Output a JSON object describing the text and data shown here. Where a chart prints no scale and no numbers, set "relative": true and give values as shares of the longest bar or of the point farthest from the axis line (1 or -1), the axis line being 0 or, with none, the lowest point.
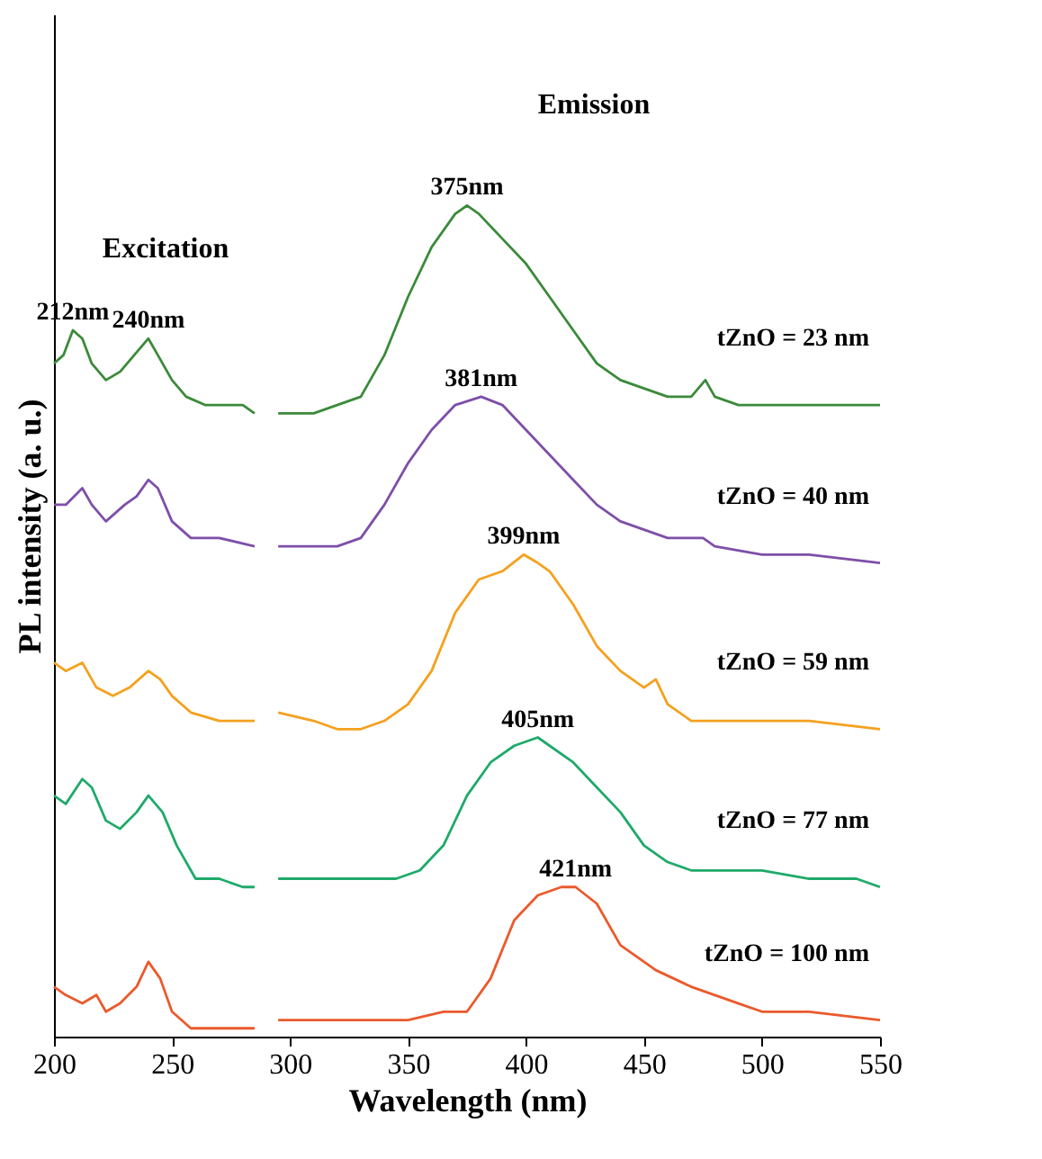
{
  "chart_data": {
    "type": "line",
    "relative": true,
    "xlabel": "Wavelength (nm)",
    "ylabel": "PL intensity (a. u.)",
    "xlim": [
      200,
      550
    ],
    "xticks": [
      200,
      250,
      300,
      350,
      400,
      450,
      500,
      550
    ],
    "legend": false,
    "grid": false,
    "line_style": "solid",
    "marker": "none",
    "tick_labels": "x",
    "annotations": [
      "Excitation",
      "Emission",
      {
        "text": "212nm",
        "x": 208,
        "y": 0.85
      },
      {
        "text": "240nm",
        "x": 240,
        "y": 0.84
      },
      {
        "text": "375nm",
        "x": 375,
        "y": 1.0
      },
      {
        "text": "381nm",
        "x": 381,
        "y": 0.77
      },
      {
        "text": "399nm",
        "x": 399,
        "y": 0.58
      },
      {
        "text": "405nm",
        "x": 405,
        "y": 0.36
      },
      {
        "text": "421nm",
        "x": 421,
        "y": 0.18
      }
    ],
    "series": [
      {
        "name": "tZnO = 23 nm",
        "color": "#3b8a3a",
        "x": [
          200,
          204,
          208,
          212,
          216,
          222,
          228,
          234,
          240,
          244,
          250,
          256,
          264,
          280,
          285,
          null,
          295,
          310,
          320,
          330,
          340,
          350,
          360,
          370,
          375,
          380,
          390,
          400,
          410,
          420,
          430,
          440,
          450,
          460,
          470,
          476,
          480,
          490,
          500,
          520,
          550
        ],
        "values": [
          0.81,
          0.82,
          0.85,
          0.84,
          0.81,
          0.79,
          0.8,
          0.82,
          0.84,
          0.82,
          0.79,
          0.77,
          0.76,
          0.76,
          0.75,
          null,
          0.75,
          0.75,
          0.76,
          0.77,
          0.82,
          0.89,
          0.95,
          0.99,
          1.0,
          0.99,
          0.96,
          0.93,
          0.89,
          0.85,
          0.81,
          0.79,
          0.78,
          0.77,
          0.77,
          0.79,
          0.77,
          0.76,
          0.76,
          0.76,
          0.76
        ]
      },
      {
        "name": "tZnO = 40 nm",
        "color": "#7e4fa8",
        "x": [
          200,
          205,
          212,
          216,
          222,
          230,
          235,
          240,
          244,
          250,
          258,
          270,
          285,
          null,
          295,
          310,
          320,
          330,
          340,
          350,
          360,
          370,
          381,
          390,
          400,
          410,
          420,
          430,
          440,
          450,
          460,
          475,
          480,
          500,
          520,
          550
        ],
        "values": [
          0.64,
          0.64,
          0.66,
          0.64,
          0.62,
          0.64,
          0.65,
          0.67,
          0.66,
          0.62,
          0.6,
          0.6,
          0.59,
          null,
          0.59,
          0.59,
          0.59,
          0.6,
          0.64,
          0.69,
          0.73,
          0.76,
          0.77,
          0.76,
          0.73,
          0.7,
          0.67,
          0.64,
          0.62,
          0.61,
          0.6,
          0.6,
          0.59,
          0.58,
          0.58,
          0.57
        ]
      },
      {
        "name": "tZnO = 59 nm",
        "color": "#f4a11f",
        "x": [
          200,
          205,
          212,
          218,
          225,
          232,
          240,
          245,
          250,
          258,
          270,
          285,
          null,
          295,
          310,
          320,
          330,
          340,
          350,
          360,
          370,
          380,
          390,
          399,
          405,
          410,
          420,
          430,
          440,
          450,
          455,
          460,
          470,
          480,
          500,
          520,
          550
        ],
        "values": [
          0.45,
          0.44,
          0.45,
          0.42,
          0.41,
          0.42,
          0.44,
          0.43,
          0.41,
          0.39,
          0.38,
          0.38,
          null,
          0.39,
          0.38,
          0.37,
          0.37,
          0.38,
          0.4,
          0.44,
          0.51,
          0.55,
          0.56,
          0.58,
          0.57,
          0.56,
          0.52,
          0.47,
          0.44,
          0.42,
          0.43,
          0.4,
          0.38,
          0.38,
          0.38,
          0.38,
          0.37
        ]
      },
      {
        "name": "tZnO = 77 nm",
        "color": "#1faa6a",
        "x": [
          200,
          205,
          212,
          216,
          222,
          228,
          235,
          240,
          246,
          252,
          260,
          270,
          280,
          285,
          null,
          295,
          310,
          330,
          345,
          355,
          365,
          375,
          385,
          395,
          405,
          410,
          420,
          430,
          440,
          450,
          460,
          470,
          480,
          490,
          500,
          520,
          530,
          540,
          550
        ],
        "values": [
          0.29,
          0.28,
          0.31,
          0.3,
          0.26,
          0.25,
          0.27,
          0.29,
          0.27,
          0.23,
          0.19,
          0.19,
          0.18,
          0.18,
          null,
          0.19,
          0.19,
          0.19,
          0.19,
          0.2,
          0.23,
          0.29,
          0.33,
          0.35,
          0.36,
          0.35,
          0.33,
          0.3,
          0.27,
          0.23,
          0.21,
          0.2,
          0.2,
          0.2,
          0.2,
          0.19,
          0.19,
          0.19,
          0.18
        ]
      },
      {
        "name": "tZnO = 100 nm",
        "color": "#ea5a2c",
        "x": [
          200,
          205,
          212,
          218,
          222,
          228,
          235,
          240,
          245,
          250,
          258,
          270,
          285,
          null,
          295,
          310,
          330,
          350,
          365,
          375,
          385,
          395,
          405,
          415,
          421,
          430,
          440,
          455,
          470,
          480,
          490,
          500,
          520,
          550
        ],
        "values": [
          0.06,
          0.05,
          0.04,
          0.05,
          0.03,
          0.04,
          0.06,
          0.09,
          0.07,
          0.03,
          0.01,
          0.01,
          0.01,
          null,
          0.02,
          0.02,
          0.02,
          0.02,
          0.03,
          0.03,
          0.07,
          0.14,
          0.17,
          0.18,
          0.18,
          0.16,
          0.11,
          0.08,
          0.06,
          0.05,
          0.04,
          0.03,
          0.03,
          0.02
        ]
      }
    ]
  }
}
